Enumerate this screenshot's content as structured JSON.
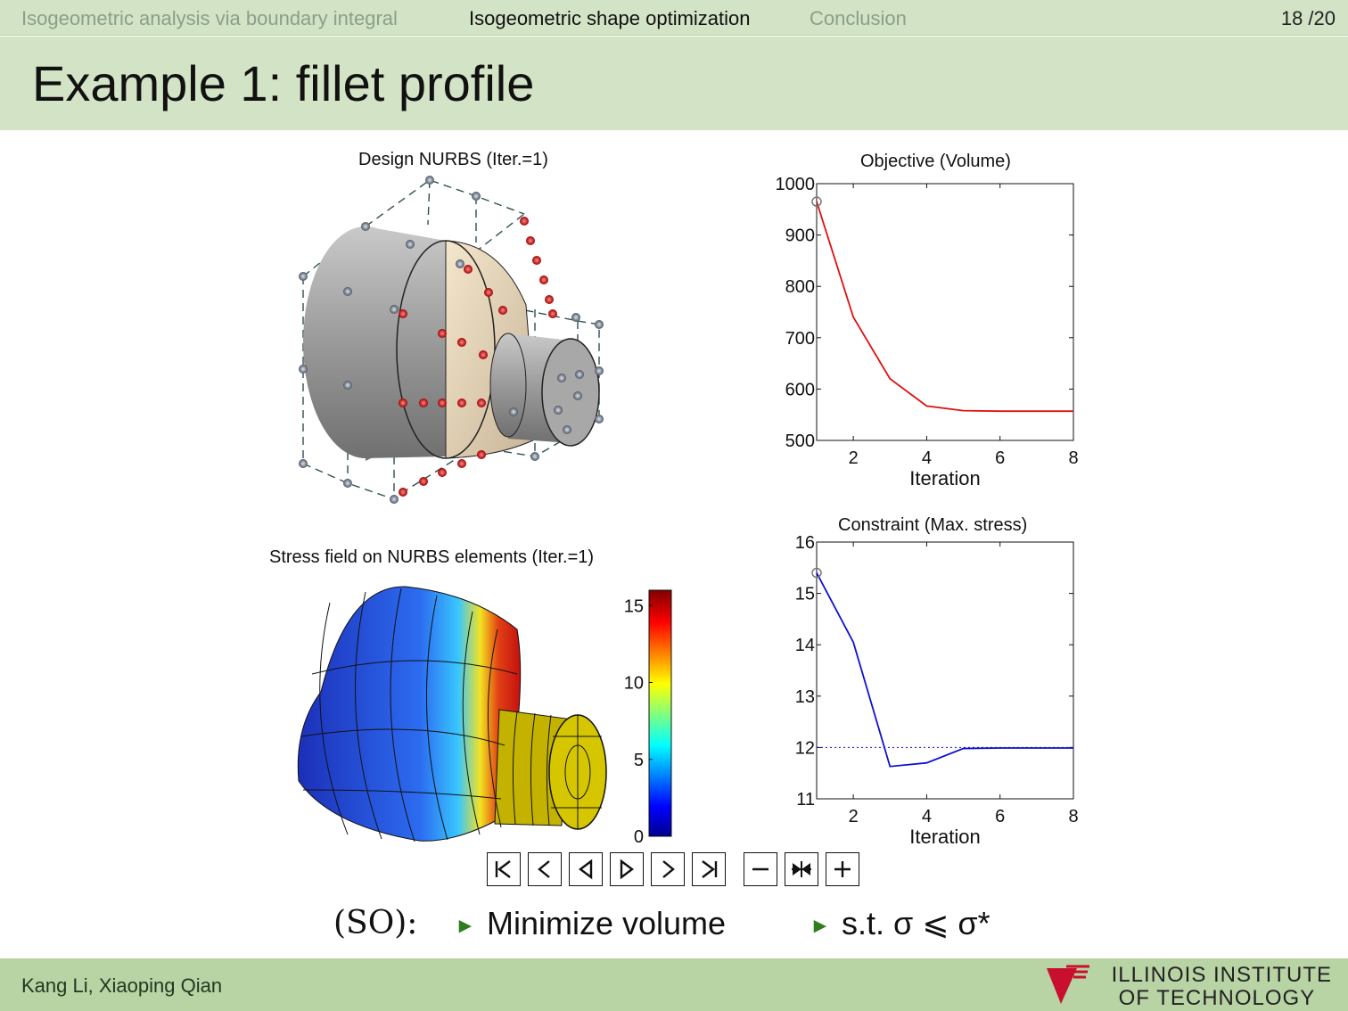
{
  "nav": {
    "sections": [
      "Isogeometric analysis via boundary integral",
      "Isogeometric shape optimization",
      "Conclusion"
    ],
    "active_index": 1,
    "page": "18 /20"
  },
  "slide": {
    "title": "Example 1: fillet profile"
  },
  "figures": {
    "design_title": "Design NURBS (Iter.=1)",
    "stress_title": "Stress field on NURBS elements (Iter.=1)",
    "colorbar_ticks": [
      "15",
      "10",
      "5",
      "0"
    ],
    "colorbar_range": [
      0,
      16
    ]
  },
  "chart_data": [
    {
      "type": "line",
      "title": "Objective (Volume)",
      "xlabel": "Iteration",
      "ylabel": "",
      "xlim": [
        1,
        8
      ],
      "ylim": [
        500,
        1000
      ],
      "xticks": [
        "2",
        "4",
        "6",
        "8"
      ],
      "yticks": [
        "500",
        "600",
        "700",
        "800",
        "900",
        "1000"
      ],
      "x": [
        1,
        2,
        3,
        4,
        5,
        6,
        7,
        8
      ],
      "series": [
        {
          "values": [
            965,
            740,
            620,
            567,
            558,
            557,
            557,
            557
          ],
          "color": "#e01010"
        }
      ],
      "marker_first": true
    },
    {
      "type": "line",
      "title": "Constraint (Max. stress)",
      "xlabel": "Iteration",
      "ylabel": "",
      "xlim": [
        1,
        8
      ],
      "ylim": [
        11,
        16
      ],
      "xticks": [
        "2",
        "4",
        "6",
        "8"
      ],
      "yticks": [
        "11",
        "12",
        "13",
        "14",
        "15",
        "16"
      ],
      "x": [
        1,
        2,
        3,
        4,
        5,
        6,
        7,
        8
      ],
      "series": [
        {
          "values": [
            15.4,
            14.05,
            11.63,
            11.7,
            11.98,
            11.99,
            11.99,
            11.99
          ],
          "color": "#1010d0"
        }
      ],
      "reference_line": 12,
      "marker_first": true
    }
  ],
  "nav_controls": [
    "first-frame",
    "previous-frame",
    "reverse-play",
    "play",
    "next-frame",
    "last-frame",
    "slower",
    "reset-speed",
    "faster"
  ],
  "problem": {
    "label": "(SO):",
    "items": [
      "Minimize volume",
      "s.t. σ ⩽ σ*"
    ]
  },
  "footer": {
    "authors": "Kang Li, Xiaoping Qian",
    "institution_line1": "ILLINOIS INSTITUTE",
    "institution_line2": "OF TECHNOLOGY"
  },
  "colors": {
    "header_bg": "#d3e3c6",
    "footer_bg": "#b8d3a4",
    "bullet": "#2f7d1f"
  }
}
